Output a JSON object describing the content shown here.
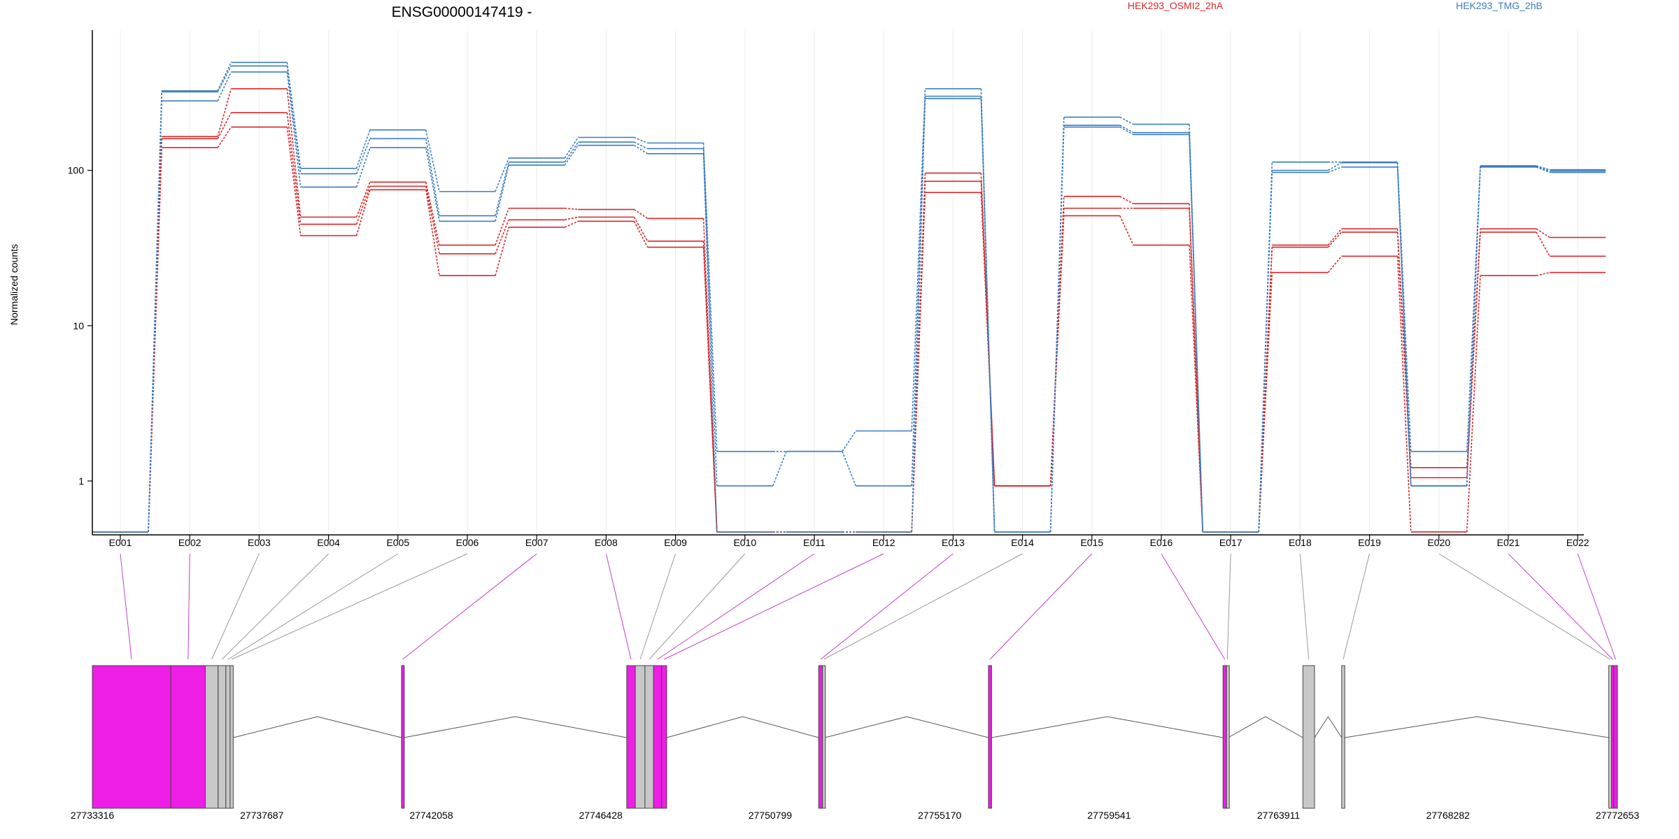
{
  "title": "ENSG00000147419 -",
  "ylabel": "Normalized counts",
  "legend": [
    {
      "name": "HEK293_OSMI2_2hA",
      "color": "#d62728"
    },
    {
      "name": "HEK293_TMG_2hB",
      "color": "#3b7dbf"
    }
  ],
  "chart_data": {
    "type": "line",
    "title": "ENSG00000147419 -",
    "xlabel": "",
    "ylabel": "Normalized counts",
    "y_scale": "log",
    "ylim": [
      0.45,
      800
    ],
    "y_ticks": [
      1,
      10,
      100
    ],
    "y_tick_labels": [
      "1",
      "10",
      "100"
    ],
    "grid": "vertical",
    "legend_position": "top",
    "categories": [
      "E001",
      "E002",
      "E003",
      "E004",
      "E005",
      "E006",
      "E007",
      "E008",
      "E009",
      "E010",
      "E011",
      "E012",
      "E013",
      "E014",
      "E015",
      "E016",
      "E017",
      "E018",
      "E019",
      "E020",
      "E021",
      "E022"
    ],
    "groups": [
      {
        "name": "HEK293_OSMI2_2hA",
        "color": "#d62728"
      },
      {
        "name": "HEK293_TMG_2hB",
        "color": "#3b7dbf"
      }
    ],
    "series": [
      {
        "group": 0,
        "values": [
          0.47,
          140,
          190,
          38,
          75,
          21,
          43,
          47,
          32,
          0.47,
          0.47,
          0.47,
          72,
          0.93,
          51,
          33,
          0.47,
          22,
          28,
          0.47,
          21,
          22
        ]
      },
      {
        "group": 0,
        "values": [
          0.47,
          160,
          235,
          45,
          79,
          29,
          48,
          50,
          35,
          0.47,
          0.47,
          0.47,
          85,
          0.93,
          57,
          57,
          0.47,
          32,
          40,
          1.05,
          40,
          28
        ]
      },
      {
        "group": 0,
        "values": [
          0.47,
          165,
          335,
          50,
          84,
          33,
          57,
          56,
          49,
          0.47,
          0.47,
          0.47,
          96,
          0.93,
          68,
          61,
          0.47,
          33,
          42,
          1.22,
          42,
          37
        ]
      },
      {
        "group": 1,
        "values": [
          0.47,
          280,
          430,
          78,
          140,
          47,
          108,
          145,
          128,
          0.47,
          0.47,
          0.47,
          290,
          0.47,
          190,
          170,
          0.47,
          97,
          105,
          0.93,
          105,
          97
        ]
      },
      {
        "group": 1,
        "values": [
          0.47,
          320,
          470,
          95,
          160,
          51,
          113,
          152,
          138,
          0.93,
          1.55,
          0.93,
          300,
          0.47,
          195,
          175,
          0.47,
          100,
          112,
          1.55,
          106,
          99
        ]
      },
      {
        "group": 1,
        "values": [
          0.47,
          325,
          495,
          103,
          182,
          73,
          120,
          163,
          150,
          1.55,
          1.55,
          2.1,
          335,
          0.47,
          220,
          198,
          0.47,
          113,
          113,
          0.93,
          107,
          101
        ]
      }
    ]
  },
  "gene_model": {
    "coord_ticks": [
      "27733316",
      "27737687",
      "27742058",
      "27746428",
      "27750799",
      "27755170",
      "27759541",
      "27763911",
      "27768282",
      "27772653"
    ],
    "exon_color_highlight": "#ee1ee6",
    "exon_color_other": "#c8c8c8",
    "exon_highlight": [
      true,
      true,
      false,
      false,
      false,
      false,
      true,
      true,
      false,
      false,
      true,
      true,
      true,
      false,
      true,
      true,
      false,
      false,
      false,
      false,
      true,
      true
    ]
  }
}
